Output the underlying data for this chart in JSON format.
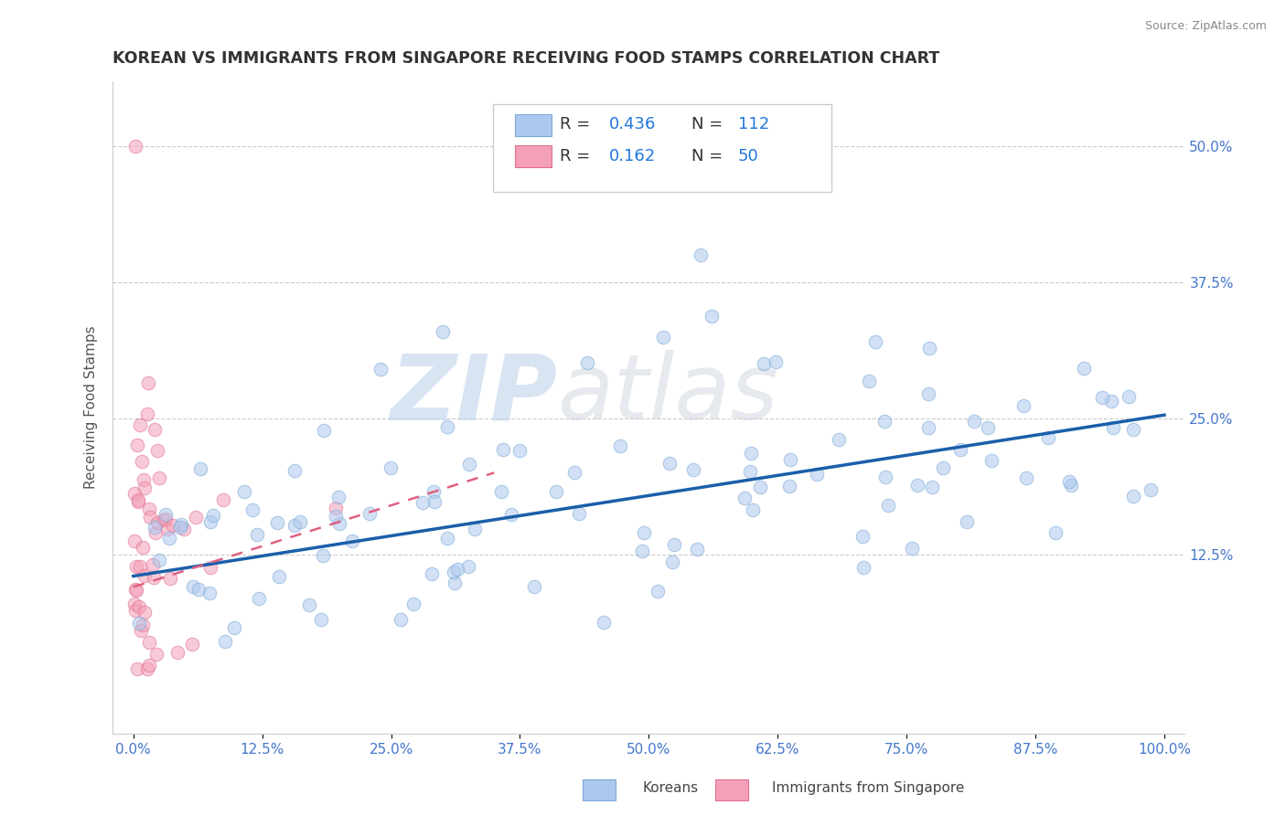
{
  "title": "KOREAN VS IMMIGRANTS FROM SINGAPORE RECEIVING FOOD STAMPS CORRELATION CHART",
  "source": "Source: ZipAtlas.com",
  "ylabel": "Receiving Food Stamps",
  "xlim": [
    -0.02,
    1.02
  ],
  "ylim": [
    -0.04,
    0.56
  ],
  "xtick_labels": [
    "0.0%",
    "12.5%",
    "25.0%",
    "37.5%",
    "50.0%",
    "62.5%",
    "75.0%",
    "87.5%",
    "100.0%"
  ],
  "xtick_values": [
    0.0,
    0.125,
    0.25,
    0.375,
    0.5,
    0.625,
    0.75,
    0.875,
    1.0
  ],
  "ytick_labels": [
    "12.5%",
    "25.0%",
    "37.5%",
    "50.0%"
  ],
  "ytick_values": [
    0.125,
    0.25,
    0.375,
    0.5
  ],
  "hline_values": [
    0.125,
    0.25,
    0.375,
    0.5
  ],
  "background_color": "#ffffff",
  "watermark_zip": "ZIP",
  "watermark_atlas": "atlas",
  "korean_color": "#adc8ee",
  "korean_edge_color": "#7aaad4",
  "singapore_color": "#f4a0b8",
  "singapore_edge_color": "#e07090",
  "trend_blue_color": "#1a5faa",
  "trend_pink_color": "#e06080",
  "tick_color": "#4477cc",
  "title_fontsize": 12.5,
  "axis_label_fontsize": 11,
  "tick_fontsize": 11,
  "marker_size": 110,
  "marker_alpha": 0.55,
  "korean_trend_x0": 0.0,
  "korean_trend_x1": 1.0,
  "korean_trend_y0": 0.105,
  "korean_trend_y1": 0.253,
  "singapore_trend_x0": 0.0,
  "singapore_trend_x1": 0.35,
  "singapore_trend_y0": 0.095,
  "singapore_trend_y1": 0.2
}
